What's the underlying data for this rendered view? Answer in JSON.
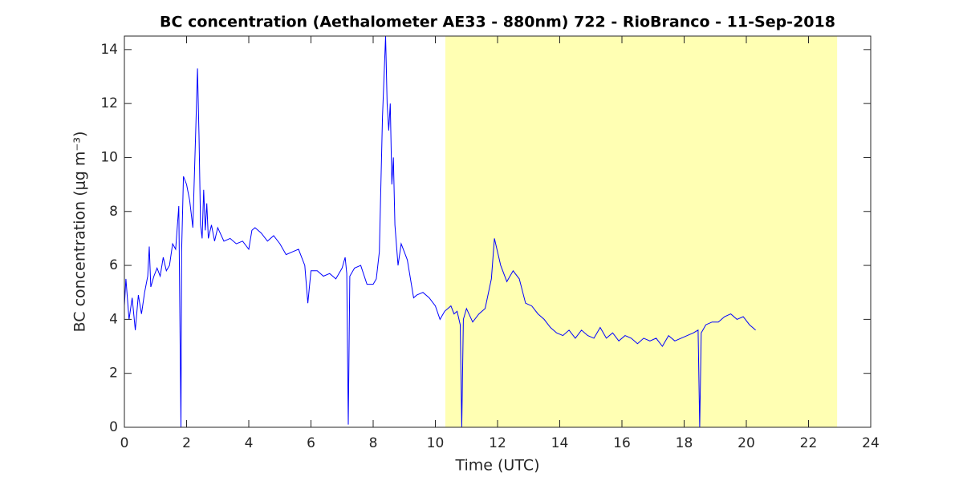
{
  "chart_data": {
    "type": "line",
    "title": "BC concentration (Aethalometer AE33 - 880nm) 722 - RioBranco - 11-Sep-2018",
    "xlabel": "Time (UTC)",
    "ylabel": "BC concentration (μg m⁻³)",
    "xlim": [
      0,
      24
    ],
    "ylim": [
      0,
      14.5
    ],
    "xticks": [
      0,
      2,
      4,
      6,
      8,
      10,
      12,
      14,
      16,
      18,
      20,
      22,
      24
    ],
    "yticks": [
      0,
      2,
      4,
      6,
      8,
      10,
      12,
      14
    ],
    "shaded_region": [
      10.32,
      22.92
    ],
    "shade_color": "#ffffb3",
    "series": [
      {
        "color": "#0000ff",
        "x": [
          0,
          0.05,
          0.15,
          0.25,
          0.35,
          0.45,
          0.55,
          0.65,
          0.75,
          0.8,
          0.85,
          0.95,
          1.05,
          1.15,
          1.25,
          1.35,
          1.45,
          1.55,
          1.65,
          1.75,
          1.8,
          1.82,
          1.84,
          1.9,
          2.0,
          2.1,
          2.2,
          2.3,
          2.35,
          2.4,
          2.45,
          2.5,
          2.55,
          2.6,
          2.65,
          2.7,
          2.8,
          2.9,
          3.0,
          3.2,
          3.4,
          3.6,
          3.8,
          4.0,
          4.1,
          4.2,
          4.4,
          4.6,
          4.8,
          5.0,
          5.2,
          5.4,
          5.6,
          5.8,
          5.9,
          6.0,
          6.2,
          6.4,
          6.6,
          6.8,
          7.0,
          7.1,
          7.15,
          7.2,
          7.25,
          7.4,
          7.6,
          7.8,
          8.0,
          8.1,
          8.2,
          8.3,
          8.4,
          8.45,
          8.5,
          8.55,
          8.6,
          8.65,
          8.7,
          8.8,
          8.9,
          9.0,
          9.1,
          9.2,
          9.3,
          9.4,
          9.6,
          9.8,
          10.0,
          10.15,
          10.3,
          10.5,
          10.6,
          10.7,
          10.8,
          10.85,
          10.9,
          11.0,
          11.2,
          11.4,
          11.6,
          11.8,
          11.9,
          12.0,
          12.1,
          12.3,
          12.5,
          12.7,
          12.9,
          13.1,
          13.3,
          13.5,
          13.7,
          13.9,
          14.1,
          14.3,
          14.5,
          14.7,
          14.9,
          15.1,
          15.3,
          15.5,
          15.7,
          15.9,
          16.1,
          16.3,
          16.5,
          16.7,
          16.9,
          17.1,
          17.3,
          17.5,
          17.7,
          17.9,
          18.1,
          18.3,
          18.45,
          18.5,
          18.55,
          18.7,
          18.9,
          19.1,
          19.3,
          19.5,
          19.7,
          19.9,
          20.1,
          20.3
        ],
        "values": [
          4.5,
          5.5,
          4.0,
          4.8,
          3.6,
          4.9,
          4.2,
          5.0,
          5.6,
          6.7,
          5.2,
          5.6,
          5.9,
          5.6,
          6.3,
          5.8,
          6.0,
          6.8,
          6.6,
          8.2,
          2.1,
          0,
          6.5,
          9.3,
          9.0,
          8.4,
          7.4,
          11.2,
          13.3,
          10.8,
          7.5,
          7.0,
          8.8,
          7.3,
          8.3,
          7.0,
          7.5,
          6.9,
          7.4,
          6.9,
          7.0,
          6.8,
          6.9,
          6.6,
          7.3,
          7.4,
          7.2,
          6.9,
          7.1,
          6.8,
          6.4,
          6.5,
          6.6,
          6.0,
          4.6,
          5.8,
          5.8,
          5.6,
          5.7,
          5.5,
          5.9,
          6.3,
          5.7,
          0.1,
          5.6,
          5.9,
          6.0,
          5.3,
          5.3,
          5.5,
          6.5,
          11.5,
          14.5,
          12.0,
          11.0,
          12.0,
          9.0,
          10.0,
          7.5,
          6.0,
          6.8,
          6.5,
          6.2,
          5.5,
          4.8,
          4.9,
          5.0,
          4.8,
          4.5,
          4.0,
          4.3,
          4.5,
          4.2,
          4.3,
          3.8,
          0,
          4.0,
          4.4,
          3.9,
          4.2,
          4.4,
          5.5,
          7.0,
          6.5,
          6.0,
          5.4,
          5.8,
          5.5,
          4.6,
          4.5,
          4.2,
          4.0,
          3.7,
          3.5,
          3.4,
          3.6,
          3.3,
          3.6,
          3.4,
          3.3,
          3.7,
          3.3,
          3.5,
          3.2,
          3.4,
          3.3,
          3.1,
          3.3,
          3.2,
          3.3,
          3.0,
          3.4,
          3.2,
          3.3,
          3.4,
          3.5,
          3.6,
          0,
          3.5,
          3.8,
          3.9,
          3.9,
          4.1,
          4.2,
          4.0,
          4.1,
          3.8,
          3.6
        ]
      }
    ]
  }
}
